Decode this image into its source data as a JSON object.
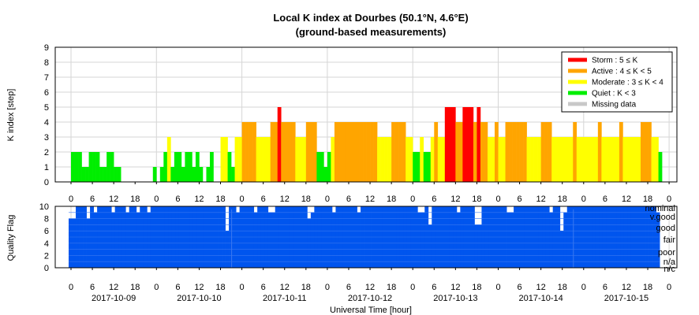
{
  "chart_data": {
    "type": "bar",
    "title": "Local K index at Dourbes (50.1°N, 4.6°E)",
    "subtitle": "(ground-based measurements)",
    "top_panel": {
      "ylabel": "K index [step]",
      "ylim": [
        0,
        9
      ],
      "yticks": [
        "0",
        "1",
        "2",
        "3",
        "4",
        "5",
        "6",
        "7",
        "8",
        "9"
      ],
      "grid": true,
      "legend_position": "top-right",
      "legend": [
        {
          "key": "storm",
          "label": "Storm : 5 ≤ K",
          "color": "#ff0000"
        },
        {
          "key": "active",
          "label": "Active : 4 ≤ K < 5",
          "color": "#ffa500"
        },
        {
          "key": "moderate",
          "label": "Moderate : 3 ≤ K < 4",
          "color": "#ffff00"
        },
        {
          "key": "quiet",
          "label": "Quiet : K < 3",
          "color": "#00ee00"
        },
        {
          "key": "missing",
          "label": "Missing data",
          "color": "#c8c8c8"
        }
      ],
      "bin_hours": 1,
      "start_hour": 0,
      "hourly_k": [
        2,
        2,
        2,
        1,
        1,
        2,
        2,
        2,
        1,
        1,
        2,
        2,
        1,
        1,
        0,
        0,
        0,
        0,
        0,
        0,
        0,
        0,
        0,
        1,
        0,
        1,
        2,
        3,
        1,
        2,
        2,
        1,
        2,
        2,
        1,
        2,
        1,
        0,
        1,
        2,
        0,
        0,
        3,
        3,
        2,
        1,
        3,
        3,
        4,
        4,
        4,
        4,
        3,
        3,
        3,
        3,
        4,
        4,
        5,
        4,
        4,
        4,
        4,
        3,
        3,
        3,
        4,
        4,
        4,
        2,
        2,
        1,
        2,
        3,
        4,
        4,
        4,
        4,
        4,
        4,
        4,
        4,
        4,
        4,
        4,
        4,
        3,
        3,
        3,
        3,
        4,
        4,
        4,
        4,
        3,
        3,
        2,
        2,
        3,
        2,
        2,
        3,
        4,
        3,
        3,
        5,
        5,
        5,
        4,
        4,
        5,
        5,
        5,
        4,
        5,
        4,
        4,
        3,
        3,
        4,
        3,
        3,
        4,
        4,
        4,
        4,
        4,
        4,
        3,
        3,
        3,
        3,
        4,
        4,
        4,
        3,
        3,
        3,
        3,
        3,
        3,
        4,
        3,
        3,
        3,
        3,
        3,
        3,
        4,
        3,
        3,
        3,
        3,
        3,
        4,
        3,
        3,
        3,
        3,
        3,
        4,
        4,
        4,
        3,
        3,
        2
      ]
    },
    "bottom_panel": {
      "ylabel": "Quality Flag",
      "ylim": [
        0,
        10
      ],
      "yticks": [
        "0",
        "2",
        "4",
        "6",
        "8",
        "10"
      ],
      "color": "#0055ee",
      "quality_labels": [
        "nominal",
        "v.good",
        "good",
        "fair",
        "poor",
        "n/a",
        "n/c"
      ],
      "samples_per_day": 24,
      "quality": [
        8,
        8,
        10,
        10,
        10,
        8,
        10,
        9,
        10,
        10,
        10,
        10,
        9,
        10,
        10,
        10,
        9,
        10,
        10,
        9,
        10,
        10,
        9,
        10,
        10,
        10,
        10,
        10,
        10,
        10,
        10,
        10,
        10,
        10,
        10,
        10,
        10,
        10,
        10,
        10,
        10,
        10,
        10,
        10,
        6,
        10,
        10,
        9,
        10,
        10,
        10,
        10,
        9,
        10,
        10,
        10,
        9,
        9,
        10,
        10,
        10,
        10,
        10,
        10,
        10,
        10,
        10,
        8,
        9,
        10,
        10,
        10,
        10,
        10,
        9,
        10,
        10,
        10,
        10,
        10,
        10,
        9,
        10,
        10,
        10,
        10,
        10,
        10,
        10,
        10,
        10,
        10,
        10,
        10,
        10,
        10,
        10,
        10,
        9,
        9,
        10,
        7,
        10,
        10,
        10,
        10,
        10,
        10,
        10,
        9,
        10,
        10,
        10,
        10,
        7,
        7,
        10,
        10,
        10,
        10,
        10,
        10,
        10,
        9,
        9,
        10,
        10,
        10,
        10,
        10,
        10,
        10,
        10,
        10,
        10,
        9,
        10,
        10,
        6,
        9,
        10,
        10,
        10,
        10,
        10,
        10,
        10,
        10,
        10,
        10,
        10,
        10,
        10,
        10,
        10,
        10,
        10,
        10,
        10,
        10,
        10,
        10,
        10,
        10,
        10,
        9
      ],
      "day_separator_days": [
        2,
        6
      ]
    },
    "xaxis": {
      "label": "Universal Time [hour]",
      "hour_ticks": [
        "0",
        "6",
        "12",
        "18",
        "0",
        "6",
        "12",
        "18",
        "0",
        "6",
        "12",
        "18",
        "0",
        "6",
        "12",
        "18",
        "0",
        "6",
        "12",
        "18",
        "0",
        "6",
        "12",
        "18",
        "0",
        "6",
        "12",
        "18",
        "0"
      ],
      "dates": [
        "2017-10-09",
        "2017-10-10",
        "2017-10-11",
        "2017-10-12",
        "2017-10-13",
        "2017-10-14",
        "2017-10-15"
      ],
      "total_hours": 168
    }
  }
}
